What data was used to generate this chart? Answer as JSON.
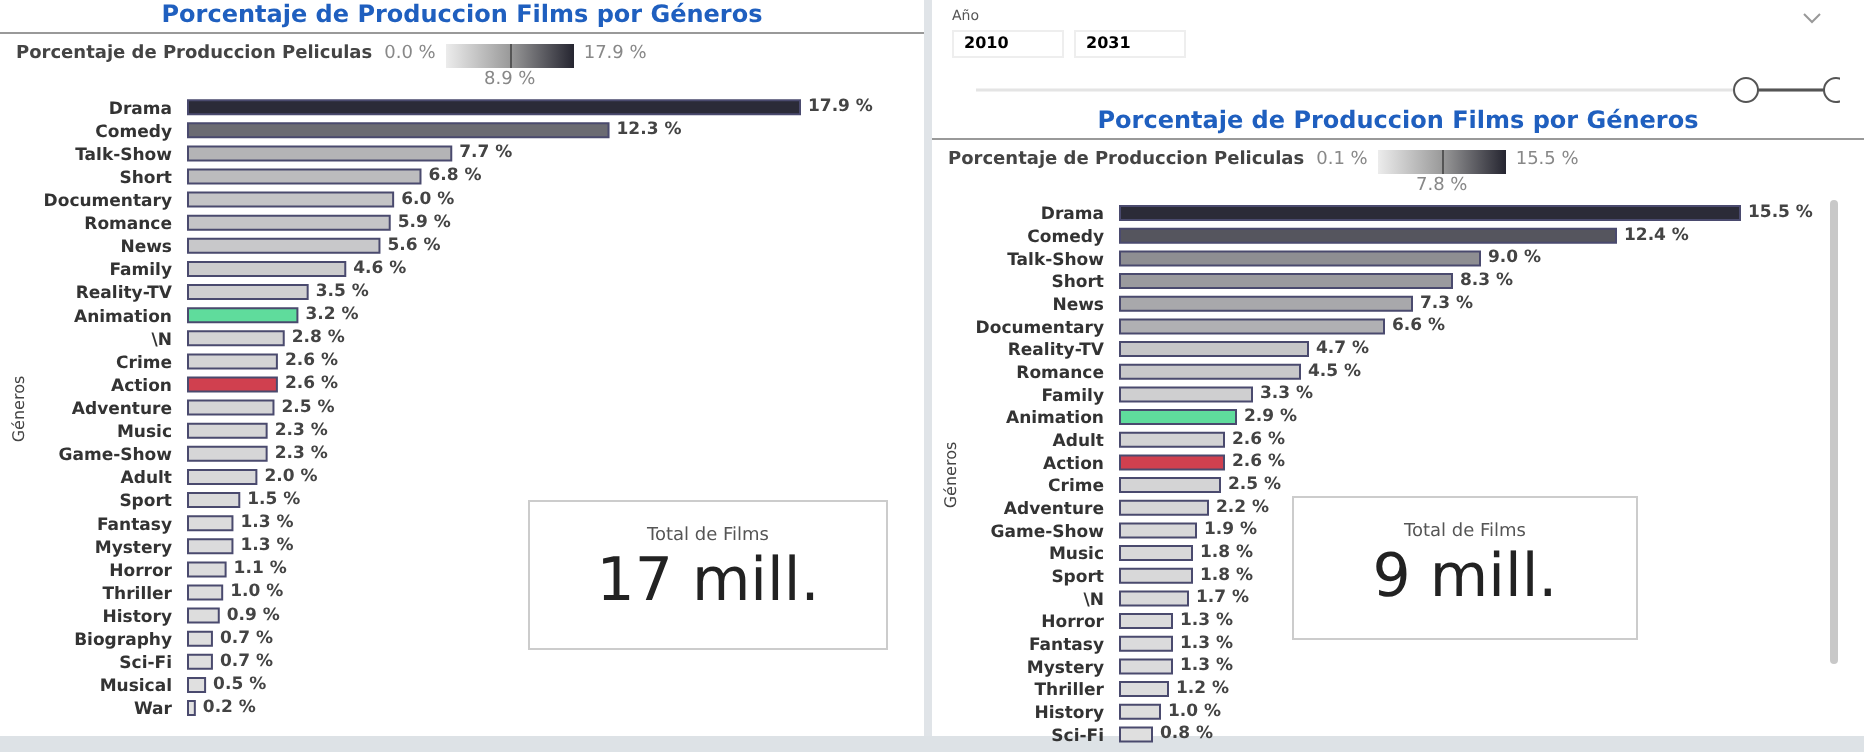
{
  "chart_data": [
    {
      "type": "bar",
      "orientation": "horizontal",
      "title": "Porcentaje de Produccion Films por Géneros",
      "ylabel": "Géneros",
      "clabel": "Porcentaje de Produccion Peliculas",
      "categories": [
        "Drama",
        "Comedy",
        "Talk-Show",
        "Short",
        "Documentary",
        "Romance",
        "News",
        "Family",
        "Reality-TV",
        "Animation",
        "\\N",
        "Crime",
        "Action",
        "Adventure",
        "Music",
        "Game-Show",
        "Adult",
        "Sport",
        "Fantasy",
        "Mystery",
        "Horror",
        "Thriller",
        "History",
        "Biography",
        "Sci-Fi",
        "Musical",
        "War"
      ],
      "values": [
        17.9,
        12.3,
        7.7,
        6.8,
        6.0,
        5.9,
        5.6,
        4.6,
        3.5,
        3.2,
        2.8,
        2.6,
        2.6,
        2.5,
        2.3,
        2.3,
        2.0,
        1.5,
        1.3,
        1.3,
        1.1,
        1.0,
        0.9,
        0.7,
        0.7,
        0.5,
        0.2
      ],
      "value_labels": [
        "17.9 %",
        "12.3 %",
        "7.7 %",
        "6.8 %",
        "6.0 %",
        "5.9 %",
        "5.6 %",
        "4.6 %",
        "3.5 %",
        "3.2 %",
        "2.8 %",
        "2.6 %",
        "2.6 %",
        "2.5 %",
        "2.3 %",
        "2.3 %",
        "2.0 %",
        "1.5 %",
        "1.3 %",
        "1.3 %",
        "1.1 %",
        "1.0 %",
        "0.9 %",
        "0.7 %",
        "0.7 %",
        "0.5 %",
        "0.2 %"
      ],
      "colors": [
        "#2b2b38",
        "#6b6b72",
        "#b4b4b6",
        "#bcbcbe",
        "#c4c4c6",
        "#c5c5c7",
        "#c8c8ca",
        "#cccccd",
        "#d0d0d1",
        "#5fdc9c",
        "#d3d3d4",
        "#d4d4d5",
        "#d0404f",
        "#d5d5d6",
        "#d6d6d7",
        "#d6d6d7",
        "#d8d8d9",
        "#dadadb",
        "#dbdbdc",
        "#dbdbdc",
        "#dcdcdd",
        "#dddddd",
        "#dddddd",
        "#dfdfdf",
        "#dfdfdf",
        "#e0e0e0",
        "#e2e2e2"
      ],
      "annotations": [
        "0.0 %",
        "8.9 %",
        "17.9 %",
        "Total de Films",
        "17 mill."
      ]
    },
    {
      "type": "bar",
      "orientation": "horizontal",
      "title": "Porcentaje de Produccion Films por Géneros",
      "ylabel": "Géneros",
      "clabel": "Porcentaje de Produccion Peliculas",
      "categories": [
        "Drama",
        "Comedy",
        "Talk-Show",
        "Short",
        "News",
        "Documentary",
        "Reality-TV",
        "Romance",
        "Family",
        "Animation",
        "Adult",
        "Action",
        "Crime",
        "Adventure",
        "Game-Show",
        "Music",
        "Sport",
        "\\N",
        "Horror",
        "Fantasy",
        "Mystery",
        "Thriller",
        "History",
        "Sci-Fi"
      ],
      "values": [
        15.5,
        12.4,
        9.0,
        8.3,
        7.3,
        6.6,
        4.7,
        4.5,
        3.3,
        2.9,
        2.6,
        2.6,
        2.5,
        2.2,
        1.9,
        1.8,
        1.8,
        1.7,
        1.3,
        1.3,
        1.3,
        1.2,
        1.0,
        0.8
      ],
      "value_labels": [
        "15.5 %",
        "12.4 %",
        "9.0 %",
        "8.3 %",
        "7.3 %",
        "6.6 %",
        "4.7 %",
        "4.5 %",
        "3.3 %",
        "2.9 %",
        "2.6 %",
        "2.6 %",
        "2.5 %",
        "2.2 %",
        "1.9 %",
        "1.8 %",
        "1.8 %",
        "1.7 %",
        "1.3 %",
        "1.3 %",
        "1.3 %",
        "1.2 %",
        "1.0 %",
        "0.8 %"
      ],
      "colors": [
        "#2b2b38",
        "#55555e",
        "#8e8e92",
        "#9a9a9e",
        "#a8a8ab",
        "#b0b0b3",
        "#c6c6c8",
        "#c8c8ca",
        "#cfcfd0",
        "#5fdc9c",
        "#d3d3d4",
        "#d0404f",
        "#d4d4d5",
        "#d6d6d7",
        "#d8d8d9",
        "#d8d8d9",
        "#d8d8d9",
        "#d9d9da",
        "#dbdbdc",
        "#dbdbdc",
        "#dbdbdc",
        "#dcdcdd",
        "#dddddd",
        "#dfdfdf"
      ],
      "annotations": [
        "Año",
        "2010",
        "2031",
        "0.1 %",
        "7.8 %",
        "15.5 %",
        "Total de Films",
        "9 mill."
      ]
    }
  ]
}
